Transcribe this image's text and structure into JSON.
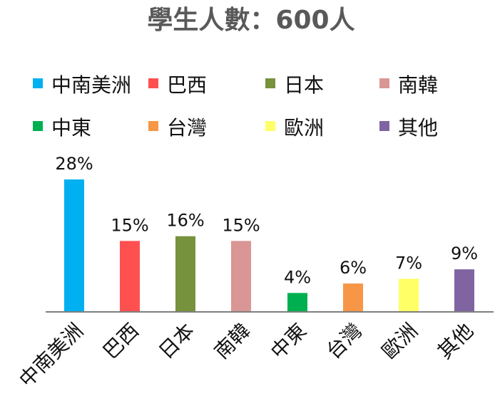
{
  "chart_data": {
    "type": "bar",
    "title": "學生人數：600人",
    "xlabel": "",
    "ylabel": "",
    "categories": [
      "中南美洲",
      "巴西",
      "日本",
      "南韓",
      "中東",
      "台灣",
      "歐洲",
      "其他"
    ],
    "values": [
      28,
      15,
      16,
      15,
      4,
      6,
      7,
      9
    ],
    "value_labels": [
      "28%",
      "15%",
      "16%",
      "15%",
      "4%",
      "6%",
      "7%",
      "9%"
    ],
    "colors": [
      "#00B0F0",
      "#FF5050",
      "#76923C",
      "#D99694",
      "#00B050",
      "#F79646",
      "#FFFF66",
      "#8064A2"
    ],
    "ylim": [
      0,
      28
    ],
    "grid": false,
    "legend_position": "top",
    "axis_color": "#7f7f7f",
    "title_color": "#595959"
  }
}
